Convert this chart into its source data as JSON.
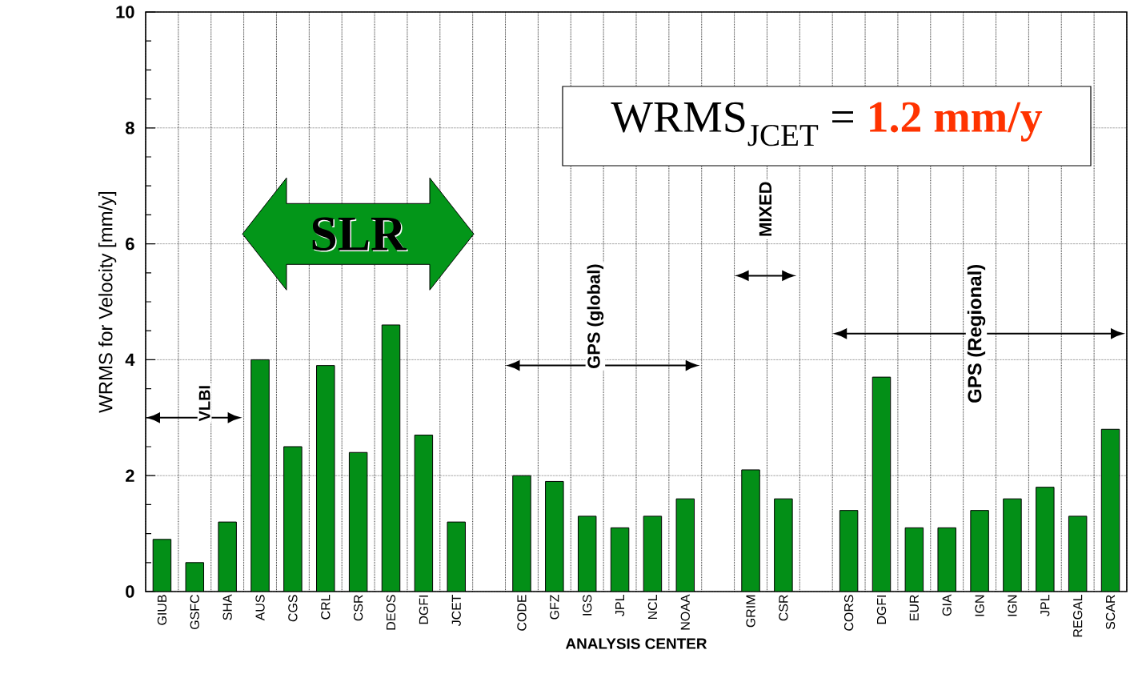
{
  "chart_data": {
    "type": "bar",
    "xlabel": "ANALYSIS   CENTER",
    "ylabel": "WRMS for Velocity [mm/y]",
    "categories": [
      "GIUB",
      "GSFC",
      "SHA",
      "AUS",
      "CGS",
      "CRL",
      "CSR",
      "DEOS",
      "DGFI",
      "JCET",
      null,
      "CODE",
      "GFZ",
      "IGS",
      "JPL",
      "NCL",
      "NOAA",
      null,
      "GRIM",
      "CSR",
      null,
      "CORS",
      "DGFI",
      "EUR",
      "GIA",
      "IGN",
      "IGN",
      "JPL",
      "REGAL",
      "SCAR"
    ],
    "values": [
      0.9,
      0.5,
      1.2,
      4.0,
      2.5,
      3.9,
      2.4,
      4.6,
      2.7,
      1.2,
      null,
      2.0,
      1.9,
      1.3,
      1.1,
      1.3,
      1.6,
      null,
      2.1,
      1.6,
      null,
      1.4,
      3.7,
      1.1,
      1.1,
      1.4,
      1.6,
      1.8,
      1.3,
      2.8
    ],
    "color": "#038f17",
    "ylim": [
      0,
      10
    ],
    "yticks": [
      0,
      2,
      4,
      6,
      8,
      10
    ],
    "grid": true,
    "annotations": [
      "VLBI",
      "SLR",
      "GPS  (global)",
      "MIXED",
      "GPS  (Regional)",
      "WRMS$_{JCET}$ =",
      "1.2 mm/y"
    ]
  }
}
